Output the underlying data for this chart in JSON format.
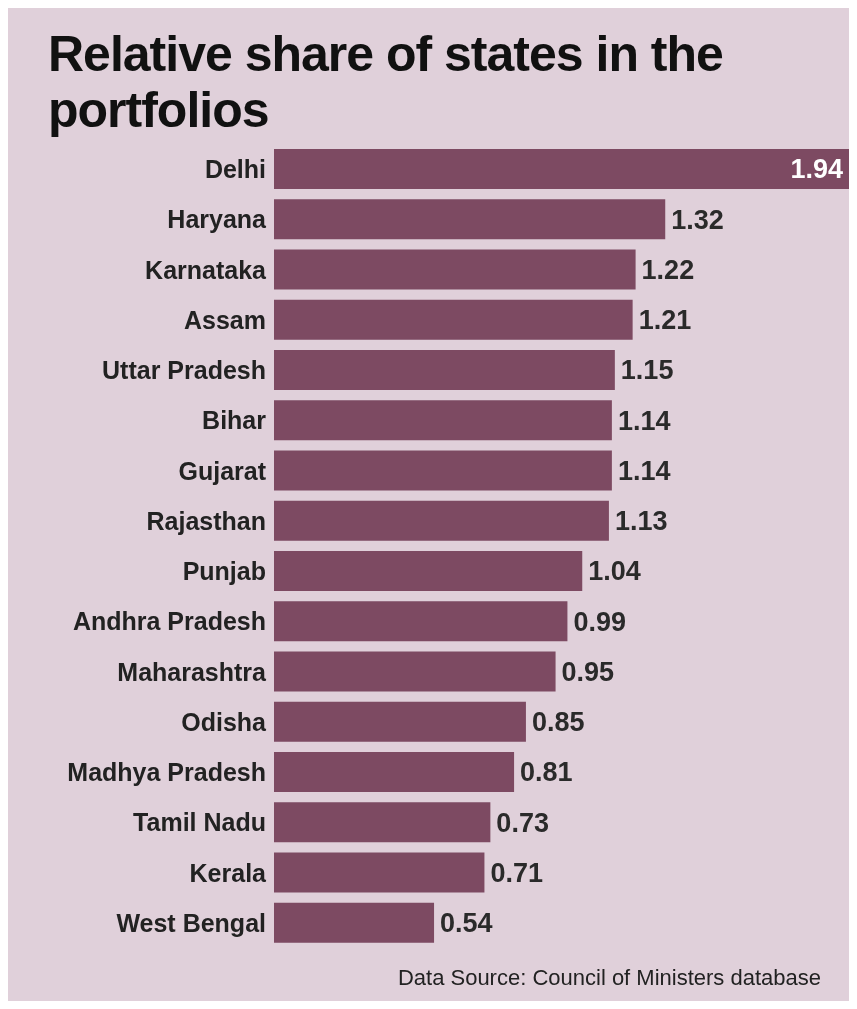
{
  "chart_data": {
    "type": "bar",
    "orientation": "horizontal",
    "title": "Relative share of states in the portfolios",
    "categories": [
      "Delhi",
      "Haryana",
      "Karnataka",
      "Assam",
      "Uttar Pradesh",
      "Bihar",
      "Gujarat",
      "Rajasthan",
      "Punjab",
      "Andhra Pradesh",
      "Maharashtra",
      "Odisha",
      "Madhya Pradesh",
      "Tamil Nadu",
      "Kerala",
      "West Bengal"
    ],
    "values": [
      1.94,
      1.32,
      1.22,
      1.21,
      1.15,
      1.14,
      1.14,
      1.13,
      1.04,
      0.99,
      0.95,
      0.85,
      0.81,
      0.73,
      0.71,
      0.54
    ],
    "color": "#7d4a62",
    "data_labels": true,
    "annotations": [
      "Data Source: Council of Ministers database"
    ]
  }
}
